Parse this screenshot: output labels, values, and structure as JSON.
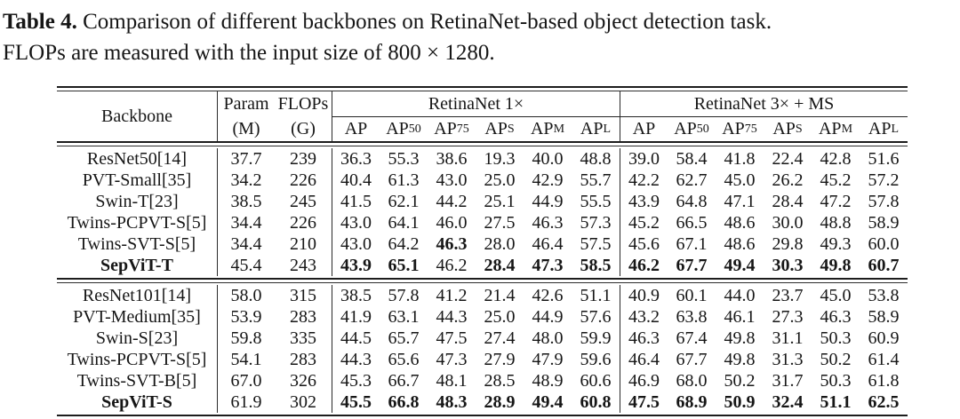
{
  "caption": {
    "label": "Table 4.",
    "line1": "Comparison of different backbones on RetinaNet-based object detection task.",
    "line2": "FLOPs are measured with the input size of 800 × 1280."
  },
  "table": {
    "header": {
      "backbone": "Backbone",
      "param": "Param",
      "param_unit": "(M)",
      "flops": "FLOPs",
      "flops_unit": "(G)",
      "group1": "RetinaNet 1×",
      "group2": "RetinaNet 3× + MS",
      "metrics": [
        {
          "base": "AP",
          "sub": ""
        },
        {
          "base": "AP",
          "sub": "50"
        },
        {
          "base": "AP",
          "sub": "75"
        },
        {
          "base": "AP",
          "sub": "S"
        },
        {
          "base": "AP",
          "sub": "M"
        },
        {
          "base": "AP",
          "sub": "L"
        }
      ]
    },
    "groups": [
      {
        "rows": [
          {
            "name": "ResNet50[14]",
            "param": "37.7",
            "flops": "239",
            "retinanet_1x": [
              "36.3",
              "55.3",
              "38.6",
              "19.3",
              "40.0",
              "48.8"
            ],
            "retinanet_3x": [
              "39.0",
              "58.4",
              "41.8",
              "22.4",
              "42.8",
              "51.6"
            ]
          },
          {
            "name": "PVT-Small[35]",
            "param": "34.2",
            "flops": "226",
            "retinanet_1x": [
              "40.4",
              "61.3",
              "43.0",
              "25.0",
              "42.9",
              "55.7"
            ],
            "retinanet_3x": [
              "42.2",
              "62.7",
              "45.0",
              "26.2",
              "45.2",
              "57.2"
            ]
          },
          {
            "name": "Swin-T[23]",
            "param": "38.5",
            "flops": "245",
            "retinanet_1x": [
              "41.5",
              "62.1",
              "44.2",
              "25.1",
              "44.9",
              "55.5"
            ],
            "retinanet_3x": [
              "43.9",
              "64.8",
              "47.1",
              "28.4",
              "47.2",
              "57.8"
            ]
          },
          {
            "name": "Twins-PCPVT-S[5]",
            "param": "34.4",
            "flops": "226",
            "retinanet_1x": [
              "43.0",
              "64.1",
              "46.0",
              "27.5",
              "46.3",
              "57.3"
            ],
            "retinanet_3x": [
              "45.2",
              "66.5",
              "48.6",
              "30.0",
              "48.8",
              "58.9"
            ]
          },
          {
            "name": "Twins-SVT-S[5]",
            "param": "34.4",
            "flops": "210",
            "retinanet_1x": [
              "43.0",
              "64.2",
              "46.3",
              "28.0",
              "46.4",
              "57.5"
            ],
            "bold_1x": [
              0,
              0,
              1,
              0,
              0,
              0
            ],
            "retinanet_3x": [
              "45.6",
              "67.1",
              "48.6",
              "29.8",
              "49.3",
              "60.0"
            ]
          },
          {
            "name": "SepViT-T",
            "bold_name": true,
            "param": "45.4",
            "flops": "243",
            "retinanet_1x": [
              "43.9",
              "65.1",
              "46.2",
              "28.4",
              "47.3",
              "58.5"
            ],
            "bold_1x": [
              1,
              1,
              0,
              1,
              1,
              1
            ],
            "retinanet_3x": [
              "46.2",
              "67.7",
              "49.4",
              "30.3",
              "49.8",
              "60.7"
            ],
            "bold_3x": [
              1,
              1,
              1,
              1,
              1,
              1
            ]
          }
        ]
      },
      {
        "rows": [
          {
            "name": "ResNet101[14]",
            "param": "58.0",
            "flops": "315",
            "retinanet_1x": [
              "38.5",
              "57.8",
              "41.2",
              "21.4",
              "42.6",
              "51.1"
            ],
            "retinanet_3x": [
              "40.9",
              "60.1",
              "44.0",
              "23.7",
              "45.0",
              "53.8"
            ]
          },
          {
            "name": "PVT-Medium[35]",
            "param": "53.9",
            "flops": "283",
            "retinanet_1x": [
              "41.9",
              "63.1",
              "44.3",
              "25.0",
              "44.9",
              "57.6"
            ],
            "retinanet_3x": [
              "43.2",
              "63.8",
              "46.1",
              "27.3",
              "46.3",
              "58.9"
            ]
          },
          {
            "name": "Swin-S[23]",
            "param": "59.8",
            "flops": "335",
            "retinanet_1x": [
              "44.5",
              "65.7",
              "47.5",
              "27.4",
              "48.0",
              "59.9"
            ],
            "retinanet_3x": [
              "46.3",
              "67.4",
              "49.8",
              "31.1",
              "50.3",
              "60.9"
            ]
          },
          {
            "name": "Twins-PCPVT-S[5]",
            "param": "54.1",
            "flops": "283",
            "retinanet_1x": [
              "44.3",
              "65.6",
              "47.3",
              "27.9",
              "47.9",
              "59.6"
            ],
            "retinanet_3x": [
              "46.4",
              "67.7",
              "49.8",
              "31.3",
              "50.2",
              "61.4"
            ]
          },
          {
            "name": "Twins-SVT-B[5]",
            "param": "67.0",
            "flops": "326",
            "retinanet_1x": [
              "45.3",
              "66.7",
              "48.1",
              "28.5",
              "48.9",
              "60.6"
            ],
            "retinanet_3x": [
              "46.9",
              "68.0",
              "50.2",
              "31.7",
              "50.3",
              "61.8"
            ]
          },
          {
            "name": "SepViT-S",
            "bold_name": true,
            "param": "61.9",
            "flops": "302",
            "retinanet_1x": [
              "45.5",
              "66.8",
              "48.3",
              "28.9",
              "49.4",
              "60.8"
            ],
            "bold_1x": [
              1,
              1,
              1,
              1,
              1,
              1
            ],
            "retinanet_3x": [
              "47.5",
              "68.9",
              "50.9",
              "32.4",
              "51.1",
              "62.5"
            ],
            "bold_3x": [
              1,
              1,
              1,
              1,
              1,
              1
            ]
          }
        ]
      }
    ]
  },
  "colors": {
    "text": "#161616",
    "rule": "#1d1d1d",
    "background": "#ffffff"
  }
}
